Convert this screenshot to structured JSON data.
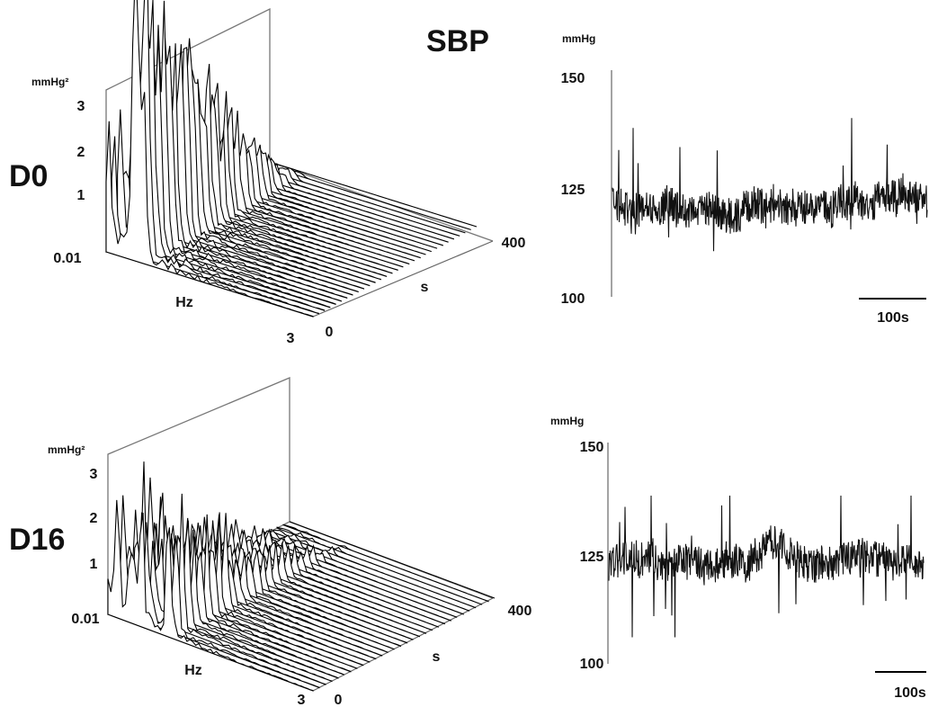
{
  "title": "SBP",
  "panels": [
    {
      "label": "D0"
    },
    {
      "label": "D16"
    }
  ],
  "spectrum_axes": {
    "unit": "mmHg²",
    "y_ticks": [
      "3",
      "2",
      "1",
      "0.01"
    ],
    "freq_label": "Hz",
    "freq_end": "3",
    "time_label": "s",
    "time_start": "0",
    "time_end": "400"
  },
  "trace_axes": {
    "unit": "mmHg",
    "y_ticks": [
      "150",
      "125",
      "100"
    ],
    "scale_bar": "100s"
  },
  "chart_data": [
    {
      "type": "line",
      "panel": "D0",
      "view": "3d-waterfall",
      "xlabel": "Hz",
      "x_range": [
        0.01,
        3
      ],
      "zlabel": "s",
      "z_range": [
        0,
        400
      ],
      "ylabel": "mmHg²",
      "y_ticks": [
        0.01,
        1,
        2,
        3
      ],
      "spectral_peaks": [
        {
          "hz": 0.05,
          "power": 3.1
        },
        {
          "hz": 0.4,
          "power": 3.8
        },
        {
          "hz": 0.45,
          "power": 3.5
        },
        {
          "hz": 0.5,
          "power": 3.9
        },
        {
          "hz": 0.55,
          "power": 3.7
        }
      ]
    },
    {
      "type": "line",
      "panel": "D0",
      "ylabel": "mmHg",
      "ylim": [
        100,
        150
      ],
      "y_ticks": [
        100,
        125,
        150
      ],
      "x_scale_bar": "100s",
      "mean": 121,
      "min": 105,
      "max": 141
    },
    {
      "type": "line",
      "panel": "D16",
      "view": "3d-waterfall",
      "xlabel": "Hz",
      "x_range": [
        0.01,
        3
      ],
      "zlabel": "s",
      "z_range": [
        0,
        400
      ],
      "ylabel": "mmHg²",
      "y_ticks": [
        0.01,
        1,
        2,
        3
      ],
      "spectral_peaks": [
        {
          "hz": 0.15,
          "power": 2.5
        },
        {
          "hz": 0.35,
          "power": 2.9
        },
        {
          "hz": 0.5,
          "power": 2.5
        },
        {
          "hz": 0.9,
          "power": 3.0
        }
      ]
    },
    {
      "type": "line",
      "panel": "D16",
      "ylabel": "mmHg",
      "ylim": [
        100,
        150
      ],
      "y_ticks": [
        100,
        125,
        150
      ],
      "x_scale_bar": "100s",
      "mean": 123,
      "min": 106,
      "max": 138
    }
  ]
}
